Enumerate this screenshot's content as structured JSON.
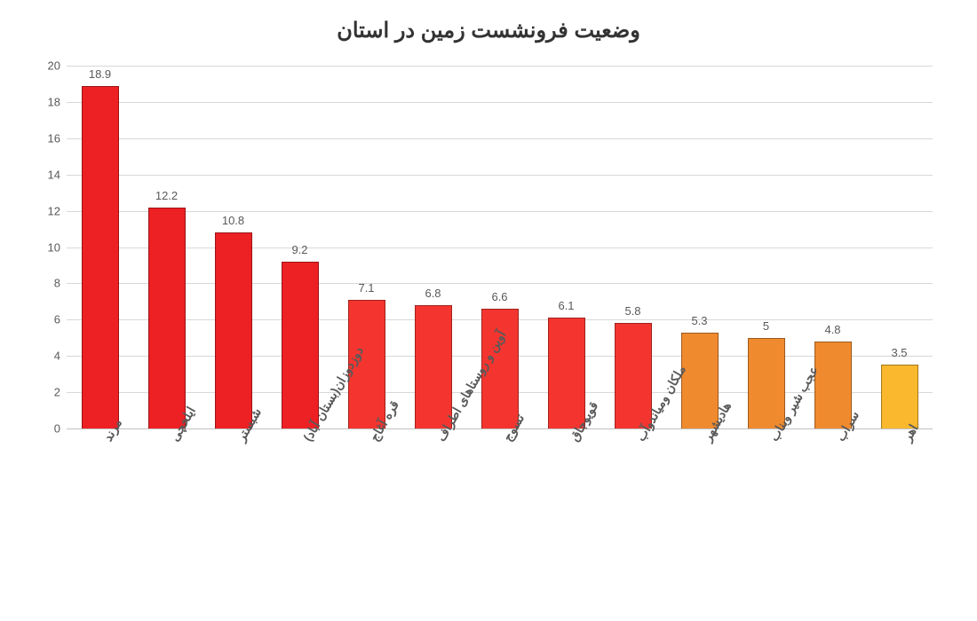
{
  "chart": {
    "type": "bar",
    "title": "وضعیت فرونشست زمین در استان",
    "title_fontsize": 24,
    "title_color": "#333333",
    "background_color": "#ffffff",
    "grid_color": "#d8d8d8",
    "axis_text_color": "#595959",
    "axis_fontsize": 13,
    "xlabel_fontsize": 14,
    "xlabel_rotation_deg": -60,
    "ylim": [
      0,
      20
    ],
    "ytick_step": 2,
    "yticks": [
      0,
      2,
      4,
      6,
      8,
      10,
      12,
      14,
      16,
      18,
      20
    ],
    "bar_width_ratio": 0.56,
    "bar_border_color": "rgba(0,0,0,0.35)",
    "categories": [
      "مرند",
      "ایلخچی",
      "شبستر",
      "دوزدوزان(بستان آباد)",
      "قره آغاج",
      "آوین و روستاهای اطراف",
      "تسوج",
      "قویوجاق",
      "ملکان ومیاندوآب",
      "هادیشهر",
      "عجب شیر وبناب",
      "سراب",
      "اهر"
    ],
    "values": [
      18.9,
      12.2,
      10.8,
      9.2,
      7.1,
      6.8,
      6.6,
      6.1,
      5.8,
      5.3,
      5,
      4.8,
      3.5
    ],
    "bar_colors": [
      "#ed2024",
      "#ed2024",
      "#ed2024",
      "#ed2024",
      "#f4352f",
      "#f4352f",
      "#f4352f",
      "#f4352f",
      "#f4352f",
      "#f08a2e",
      "#f08a2e",
      "#f08a2e",
      "#fab82e"
    ]
  }
}
